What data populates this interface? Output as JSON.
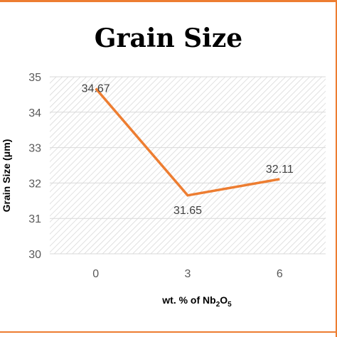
{
  "chart_data": {
    "type": "line",
    "title": "Grain Size",
    "ylabel": "Grain Size (μm)",
    "xlabel": "wt. % of Nb2O5",
    "xlabel_parts": {
      "pre": "wt. % of Nb",
      "sub1": "2",
      "mid": "O",
      "sub2": "5"
    },
    "categories": [
      "0",
      "3",
      "6"
    ],
    "values": [
      34.67,
      31.65,
      32.11
    ],
    "data_labels": [
      "34.67",
      "31.65",
      "32.11"
    ],
    "ylim": [
      30,
      35
    ],
    "yticks": [
      "30",
      "31",
      "32",
      "33",
      "34",
      "35"
    ],
    "grid": true,
    "plot_background": "diagonal-hatch",
    "line_color": "#ED7D31",
    "frame_color": "#ED7D31"
  }
}
